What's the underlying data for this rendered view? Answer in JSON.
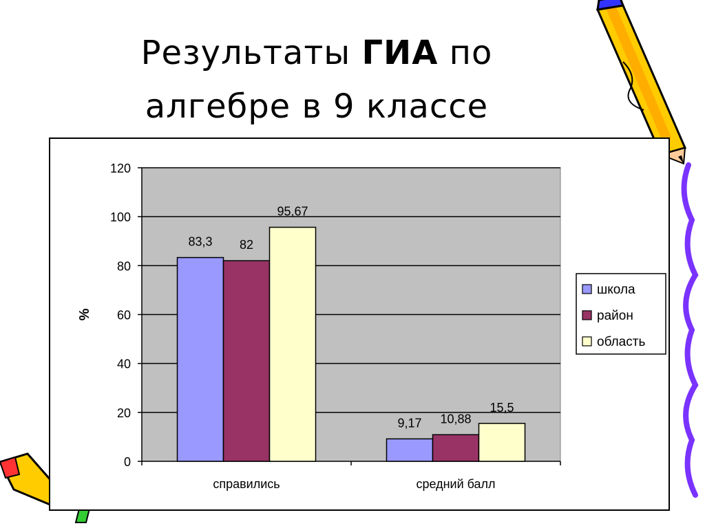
{
  "slide": {
    "title_line1_pre": "Результаты ",
    "title_line1_bold": "ГИА",
    "title_line1_post": " по",
    "title_line2": "алгебре в 9 классе"
  },
  "chart_data": {
    "type": "bar",
    "categories": [
      "справились",
      "средний балл"
    ],
    "series": [
      {
        "name": "школа",
        "values": [
          83.3,
          9.17
        ],
        "labels": [
          "83,3",
          "9,17"
        ],
        "color": "#9999ff"
      },
      {
        "name": "район",
        "values": [
          82,
          10.88
        ],
        "labels": [
          "82",
          "10,88"
        ],
        "color": "#993366"
      },
      {
        "name": "область",
        "values": [
          95.67,
          15.5
        ],
        "labels": [
          "95,67",
          "15,5"
        ],
        "color": "#ffffcc"
      }
    ],
    "title": "",
    "xlabel": "",
    "ylabel": "%",
    "ylim": [
      0,
      120
    ],
    "yticks": [
      0,
      20,
      40,
      60,
      80,
      100,
      120
    ],
    "grid": true,
    "plot_background": "#c0c0c0",
    "legend_position": "right"
  }
}
